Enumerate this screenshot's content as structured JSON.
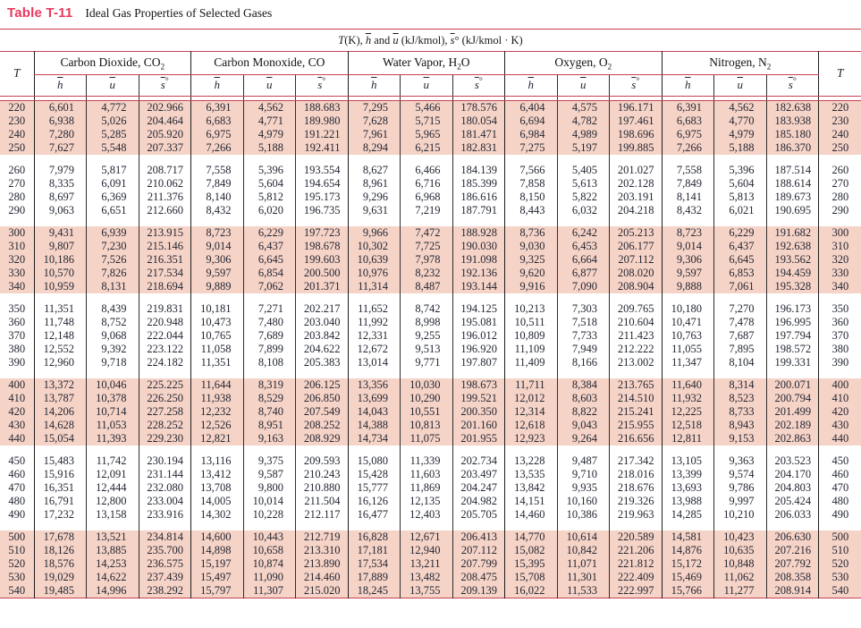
{
  "header": {
    "label": "Table T-11",
    "caption": "Ideal Gas Properties of Selected Gases"
  },
  "units": {
    "p1": "T",
    "p2": "(K), ",
    "p3": "h",
    "p4": " and ",
    "p5": "u",
    "p6": " (kJ/kmol), ",
    "p7": "s",
    "p8": "° (kJ/kmol · K)"
  },
  "columns": {
    "t": "T",
    "h": "h",
    "u": "u",
    "s": "s",
    "deg": "°"
  },
  "groups": [
    {
      "pre": "Carbon Dioxide, CO",
      "sub": "2",
      "post": ""
    },
    {
      "pre": "Carbon Monoxide, CO",
      "sub": "",
      "post": ""
    },
    {
      "pre": "Water Vapor, H",
      "sub": "2",
      "post": "O"
    },
    {
      "pre": "Oxygen, O",
      "sub": "2",
      "post": ""
    },
    {
      "pre": "Nitrogen, N",
      "sub": "2",
      "post": ""
    }
  ],
  "accent_colors": {
    "title_red": "#e8395e",
    "rule_red": "#c64152",
    "band_pink": "#f6d3c7"
  },
  "blocks": [
    {
      "shaded": true,
      "rows": [
        [
          "220",
          "6,601",
          "4,772",
          "202.966",
          "6,391",
          "4,562",
          "188.683",
          "7,295",
          "5,466",
          "178.576",
          "6,404",
          "4,575",
          "196.171",
          "6,391",
          "4,562",
          "182.638",
          "220"
        ],
        [
          "230",
          "6,938",
          "5,026",
          "204.464",
          "6,683",
          "4,771",
          "189.980",
          "7,628",
          "5,715",
          "180.054",
          "6,694",
          "4,782",
          "197.461",
          "6,683",
          "4,770",
          "183.938",
          "230"
        ],
        [
          "240",
          "7,280",
          "5,285",
          "205.920",
          "6,975",
          "4,979",
          "191.221",
          "7,961",
          "5,965",
          "181.471",
          "6,984",
          "4,989",
          "198.696",
          "6,975",
          "4,979",
          "185.180",
          "240"
        ],
        [
          "250",
          "7,627",
          "5,548",
          "207.337",
          "7,266",
          "5,188",
          "192.411",
          "8,294",
          "6,215",
          "182.831",
          "7,275",
          "5,197",
          "199.885",
          "7,266",
          "5,188",
          "186.370",
          "250"
        ]
      ]
    },
    {
      "shaded": false,
      "rows": [
        [
          "260",
          "7,979",
          "5,817",
          "208.717",
          "7,558",
          "5,396",
          "193.554",
          "8,627",
          "6,466",
          "184.139",
          "7,566",
          "5,405",
          "201.027",
          "7,558",
          "5,396",
          "187.514",
          "260"
        ],
        [
          "270",
          "8,335",
          "6,091",
          "210.062",
          "7,849",
          "5,604",
          "194.654",
          "8,961",
          "6,716",
          "185.399",
          "7,858",
          "5,613",
          "202.128",
          "7,849",
          "5,604",
          "188.614",
          "270"
        ],
        [
          "280",
          "8,697",
          "6,369",
          "211.376",
          "8,140",
          "5,812",
          "195.173",
          "9,296",
          "6,968",
          "186.616",
          "8,150",
          "5,822",
          "203.191",
          "8,141",
          "5,813",
          "189.673",
          "280"
        ],
        [
          "290",
          "9,063",
          "6,651",
          "212.660",
          "8,432",
          "6,020",
          "196.735",
          "9,631",
          "7,219",
          "187.791",
          "8,443",
          "6,032",
          "204.218",
          "8,432",
          "6,021",
          "190.695",
          "290"
        ]
      ]
    },
    {
      "shaded": true,
      "rows": [
        [
          "300",
          "9,431",
          "6,939",
          "213.915",
          "8,723",
          "6,229",
          "197.723",
          "9,966",
          "7,472",
          "188.928",
          "8,736",
          "6,242",
          "205.213",
          "8,723",
          "6,229",
          "191.682",
          "300"
        ],
        [
          "310",
          "9,807",
          "7,230",
          "215.146",
          "9,014",
          "6,437",
          "198.678",
          "10,302",
          "7,725",
          "190.030",
          "9,030",
          "6,453",
          "206.177",
          "9,014",
          "6,437",
          "192.638",
          "310"
        ],
        [
          "320",
          "10,186",
          "7,526",
          "216.351",
          "9,306",
          "6,645",
          "199.603",
          "10,639",
          "7,978",
          "191.098",
          "9,325",
          "6,664",
          "207.112",
          "9,306",
          "6,645",
          "193.562",
          "320"
        ],
        [
          "330",
          "10,570",
          "7,826",
          "217.534",
          "9,597",
          "6,854",
          "200.500",
          "10,976",
          "8,232",
          "192.136",
          "9,620",
          "6,877",
          "208.020",
          "9,597",
          "6,853",
          "194.459",
          "330"
        ],
        [
          "340",
          "10,959",
          "8,131",
          "218.694",
          "9,889",
          "7,062",
          "201.371",
          "11,314",
          "8,487",
          "193.144",
          "9,916",
          "7,090",
          "208.904",
          "9,888",
          "7,061",
          "195.328",
          "340"
        ]
      ]
    },
    {
      "shaded": false,
      "rows": [
        [
          "350",
          "11,351",
          "8,439",
          "219.831",
          "10,181",
          "7,271",
          "202.217",
          "11,652",
          "8,742",
          "194.125",
          "10,213",
          "7,303",
          "209.765",
          "10,180",
          "7,270",
          "196.173",
          "350"
        ],
        [
          "360",
          "11,748",
          "8,752",
          "220.948",
          "10,473",
          "7,480",
          "203.040",
          "11,992",
          "8,998",
          "195.081",
          "10,511",
          "7,518",
          "210.604",
          "10,471",
          "7,478",
          "196.995",
          "360"
        ],
        [
          "370",
          "12,148",
          "9,068",
          "222.044",
          "10,765",
          "7,689",
          "203.842",
          "12,331",
          "9,255",
          "196.012",
          "10,809",
          "7,733",
          "211.423",
          "10,763",
          "7,687",
          "197.794",
          "370"
        ],
        [
          "380",
          "12,552",
          "9,392",
          "223.122",
          "11,058",
          "7,899",
          "204.622",
          "12,672",
          "9,513",
          "196.920",
          "11,109",
          "7,949",
          "212.222",
          "11,055",
          "7,895",
          "198.572",
          "380"
        ],
        [
          "390",
          "12,960",
          "9,718",
          "224.182",
          "11,351",
          "8,108",
          "205.383",
          "13,014",
          "9,771",
          "197.807",
          "11,409",
          "8,166",
          "213.002",
          "11,347",
          "8,104",
          "199.331",
          "390"
        ]
      ]
    },
    {
      "shaded": true,
      "rows": [
        [
          "400",
          "13,372",
          "10,046",
          "225.225",
          "11,644",
          "8,319",
          "206.125",
          "13,356",
          "10,030",
          "198.673",
          "11,711",
          "8,384",
          "213.765",
          "11,640",
          "8,314",
          "200.071",
          "400"
        ],
        [
          "410",
          "13,787",
          "10,378",
          "226.250",
          "11,938",
          "8,529",
          "206.850",
          "13,699",
          "10,290",
          "199.521",
          "12,012",
          "8,603",
          "214.510",
          "11,932",
          "8,523",
          "200.794",
          "410"
        ],
        [
          "420",
          "14,206",
          "10,714",
          "227.258",
          "12,232",
          "8,740",
          "207.549",
          "14,043",
          "10,551",
          "200.350",
          "12,314",
          "8,822",
          "215.241",
          "12,225",
          "8,733",
          "201.499",
          "420"
        ],
        [
          "430",
          "14,628",
          "11,053",
          "228.252",
          "12,526",
          "8,951",
          "208.252",
          "14,388",
          "10,813",
          "201.160",
          "12,618",
          "9,043",
          "215.955",
          "12,518",
          "8,943",
          "202.189",
          "430"
        ],
        [
          "440",
          "15,054",
          "11,393",
          "229.230",
          "12,821",
          "9,163",
          "208.929",
          "14,734",
          "11,075",
          "201.955",
          "12,923",
          "9,264",
          "216.656",
          "12,811",
          "9,153",
          "202.863",
          "440"
        ]
      ]
    },
    {
      "shaded": false,
      "rows": [
        [
          "450",
          "15,483",
          "11,742",
          "230.194",
          "13,116",
          "9,375",
          "209.593",
          "15,080",
          "11,339",
          "202.734",
          "13,228",
          "9,487",
          "217.342",
          "13,105",
          "9,363",
          "203.523",
          "450"
        ],
        [
          "460",
          "15,916",
          "12,091",
          "231.144",
          "13,412",
          "9,587",
          "210.243",
          "15,428",
          "11,603",
          "203.497",
          "13,535",
          "9,710",
          "218.016",
          "13,399",
          "9,574",
          "204.170",
          "460"
        ],
        [
          "470",
          "16,351",
          "12,444",
          "232.080",
          "13,708",
          "9,800",
          "210.880",
          "15,777",
          "11,869",
          "204.247",
          "13,842",
          "9,935",
          "218.676",
          "13,693",
          "9,786",
          "204.803",
          "470"
        ],
        [
          "480",
          "16,791",
          "12,800",
          "233.004",
          "14,005",
          "10,014",
          "211.504",
          "16,126",
          "12,135",
          "204.982",
          "14,151",
          "10,160",
          "219.326",
          "13,988",
          "9,997",
          "205.424",
          "480"
        ],
        [
          "490",
          "17,232",
          "13,158",
          "233.916",
          "14,302",
          "10,228",
          "212.117",
          "16,477",
          "12,403",
          "205.705",
          "14,460",
          "10,386",
          "219.963",
          "14,285",
          "10,210",
          "206.033",
          "490"
        ]
      ]
    },
    {
      "shaded": true,
      "rows": [
        [
          "500",
          "17,678",
          "13,521",
          "234.814",
          "14,600",
          "10,443",
          "212.719",
          "16,828",
          "12,671",
          "206.413",
          "14,770",
          "10,614",
          "220.589",
          "14,581",
          "10,423",
          "206.630",
          "500"
        ],
        [
          "510",
          "18,126",
          "13,885",
          "235.700",
          "14,898",
          "10,658",
          "213.310",
          "17,181",
          "12,940",
          "207.112",
          "15,082",
          "10,842",
          "221.206",
          "14,876",
          "10,635",
          "207.216",
          "510"
        ],
        [
          "520",
          "18,576",
          "14,253",
          "236.575",
          "15,197",
          "10,874",
          "213.890",
          "17,534",
          "13,211",
          "207.799",
          "15,395",
          "11,071",
          "221.812",
          "15,172",
          "10,848",
          "207.792",
          "520"
        ],
        [
          "530",
          "19,029",
          "14,622",
          "237.439",
          "15,497",
          "11,090",
          "214.460",
          "17,889",
          "13,482",
          "208.475",
          "15,708",
          "11,301",
          "222.409",
          "15,469",
          "11,062",
          "208.358",
          "530"
        ],
        [
          "540",
          "19,485",
          "14,996",
          "238.292",
          "15,797",
          "11,307",
          "215.020",
          "18,245",
          "13,755",
          "209.139",
          "16,022",
          "11,533",
          "222.997",
          "15,766",
          "11,277",
          "208.914",
          "540"
        ]
      ]
    }
  ]
}
